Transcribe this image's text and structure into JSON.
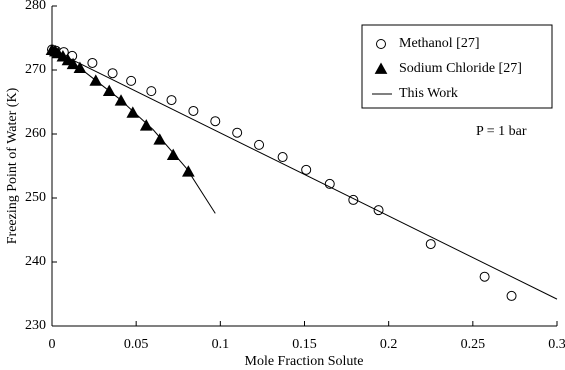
{
  "chart_data": {
    "type": "scatter",
    "xlabel": "Mole Fraction Solute",
    "ylabel": "Freezing Point of Water (K)",
    "annotation": "P = 1 bar",
    "xlim": [
      0,
      0.3
    ],
    "ylim": [
      230,
      280
    ],
    "xticks": [
      0,
      0.05,
      0.1,
      0.15,
      0.2,
      0.25,
      0.3
    ],
    "yticks": [
      230,
      240,
      250,
      260,
      270,
      280
    ],
    "series": [
      {
        "name": "Methanol [27]",
        "type": "scatter",
        "marker": "circle",
        "color": "#000000",
        "x": [
          0,
          0.0024,
          0.007,
          0.012,
          0.024,
          0.036,
          0.047,
          0.059,
          0.071,
          0.084,
          0.097,
          0.11,
          0.123,
          0.137,
          0.151,
          0.165,
          0.179,
          0.194,
          0.225,
          0.257,
          0.273
        ],
        "y": [
          273.2,
          273.0,
          272.8,
          272.2,
          271.1,
          269.5,
          268.3,
          266.7,
          265.3,
          263.6,
          262.0,
          260.2,
          258.3,
          256.4,
          254.4,
          252.2,
          249.7,
          248.1,
          242.8,
          237.7,
          234.7
        ]
      },
      {
        "name": "Sodium Chloride [27]",
        "type": "scatter",
        "marker": "triangle",
        "color": "#000000",
        "x": [
          0,
          0.002,
          0.0036,
          0.0065,
          0.0095,
          0.0125,
          0.0166,
          0.026,
          0.034,
          0.041,
          0.048,
          0.056,
          0.064,
          0.072,
          0.081
        ],
        "y": [
          273.1,
          272.9,
          272.6,
          272.1,
          271.5,
          270.9,
          270.3,
          268.3,
          266.7,
          265.2,
          263.3,
          261.3,
          259.1,
          256.7,
          254.1
        ]
      },
      {
        "name": "This Work",
        "type": "line",
        "color": "#000000",
        "x": [
          0,
          0.3,
          null,
          0,
          0.02,
          0.04,
          0.06,
          0.08,
          0.097
        ],
        "y": [
          273.15,
          234.2,
          null,
          273.15,
          269.6,
          265.5,
          260.7,
          254.6,
          247.6
        ]
      }
    ]
  }
}
